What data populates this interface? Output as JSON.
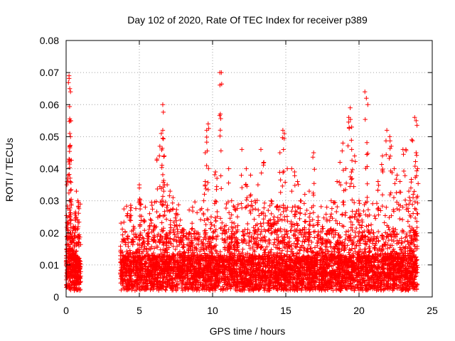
{
  "chart_data": {
    "type": "scatter",
    "title": "Day 102 of 2020, Rate Of TEC Index for receiver p389",
    "xlabel": "GPS time / hours",
    "ylabel": "ROTI / TECUs",
    "xlim": [
      0,
      25
    ],
    "ylim": [
      0,
      0.08
    ],
    "x_ticks": [
      "0",
      "5",
      "10",
      "15",
      "20",
      "25"
    ],
    "y_ticks": [
      "0",
      "0.01",
      "0.02",
      "0.03",
      "0.04",
      "0.05",
      "0.06",
      "0.07",
      "0.08"
    ],
    "x_tick_values": [
      0,
      5,
      10,
      15,
      20,
      25
    ],
    "y_tick_values": [
      0,
      0.01,
      0.02,
      0.03,
      0.04,
      0.05,
      0.06,
      0.07,
      0.08
    ],
    "grid": true,
    "marker": "+",
    "marker_color": "#ff0000",
    "series": [
      {
        "segments": [
          {
            "x_start": 0.0,
            "x_end": 1.0
          },
          {
            "x_start": 3.7,
            "x_end": 24.0
          }
        ],
        "points": [
          [
            0.2,
            0.069
          ],
          [
            0.25,
            0.065
          ],
          [
            0.3,
            0.064
          ],
          [
            0.3,
            0.055
          ],
          [
            0.25,
            0.051
          ],
          [
            0.3,
            0.05
          ],
          [
            0.2,
            0.043
          ],
          [
            0.1,
            0.037
          ],
          [
            0.15,
            0.036
          ],
          [
            0.05,
            0.035
          ],
          [
            0.1,
            0.023
          ],
          [
            0.3,
            0.03
          ],
          [
            0.35,
            0.029
          ],
          [
            0.6,
            0.026
          ],
          [
            0.7,
            0.033
          ],
          [
            0.8,
            0.03
          ],
          [
            0.85,
            0.028
          ],
          [
            0.5,
            0.022
          ],
          [
            0.6,
            0.02
          ],
          [
            0.4,
            0.018
          ],
          [
            0.2,
            0.015
          ],
          [
            0.5,
            0.012
          ],
          [
            0.7,
            0.011
          ],
          [
            0.85,
            0.009
          ],
          [
            0.9,
            0.006
          ],
          [
            0.15,
            0.008
          ],
          [
            0.3,
            0.005
          ],
          [
            0.6,
            0.004
          ],
          [
            0.05,
            0.003
          ],
          [
            0.75,
            0.007
          ],
          [
            4.2,
            0.026
          ],
          [
            4.4,
            0.027
          ],
          [
            4.6,
            0.022
          ],
          [
            4.8,
            0.019
          ],
          [
            5.0,
            0.035
          ],
          [
            5.0,
            0.034
          ],
          [
            5.1,
            0.029
          ],
          [
            5.3,
            0.024
          ],
          [
            5.6,
            0.02
          ],
          [
            6.0,
            0.022
          ],
          [
            6.2,
            0.043
          ],
          [
            6.4,
            0.047
          ],
          [
            6.5,
            0.051
          ],
          [
            6.6,
            0.052
          ],
          [
            6.6,
            0.06
          ],
          [
            6.7,
            0.044
          ],
          [
            6.9,
            0.035
          ],
          [
            7.1,
            0.033
          ],
          [
            7.3,
            0.031
          ],
          [
            7.5,
            0.026
          ],
          [
            7.8,
            0.024
          ],
          [
            8.0,
            0.021
          ],
          [
            8.4,
            0.02
          ],
          [
            8.6,
            0.023
          ],
          [
            9.0,
            0.02
          ],
          [
            9.4,
            0.03
          ],
          [
            9.5,
            0.045
          ],
          [
            9.6,
            0.052
          ],
          [
            9.7,
            0.054
          ],
          [
            9.5,
            0.036
          ],
          [
            9.9,
            0.025
          ],
          [
            10.2,
            0.039
          ],
          [
            10.3,
            0.037
          ],
          [
            10.5,
            0.07
          ],
          [
            10.6,
            0.07
          ],
          [
            10.8,
            0.022
          ],
          [
            11.1,
            0.04
          ],
          [
            11.3,
            0.03
          ],
          [
            11.5,
            0.028
          ],
          [
            11.7,
            0.025
          ],
          [
            12.0,
            0.046
          ],
          [
            12.3,
            0.04
          ],
          [
            12.6,
            0.038
          ],
          [
            12.9,
            0.03
          ],
          [
            13.1,
            0.035
          ],
          [
            13.3,
            0.046
          ],
          [
            13.5,
            0.042
          ],
          [
            13.8,
            0.027
          ],
          [
            14.0,
            0.03
          ],
          [
            14.2,
            0.025
          ],
          [
            14.4,
            0.028
          ],
          [
            14.6,
            0.045
          ],
          [
            14.8,
            0.052
          ],
          [
            14.9,
            0.051
          ],
          [
            15.1,
            0.04
          ],
          [
            15.4,
            0.04
          ],
          [
            15.6,
            0.039
          ],
          [
            15.8,
            0.036
          ],
          [
            16.0,
            0.03
          ],
          [
            16.3,
            0.032
          ],
          [
            16.6,
            0.033
          ],
          [
            16.9,
            0.045
          ],
          [
            17.2,
            0.025
          ],
          [
            17.5,
            0.022
          ],
          [
            17.8,
            0.028
          ],
          [
            18.1,
            0.03
          ],
          [
            18.5,
            0.036
          ],
          [
            18.7,
            0.042
          ],
          [
            18.9,
            0.048
          ],
          [
            19.1,
            0.04
          ],
          [
            19.3,
            0.056
          ],
          [
            19.4,
            0.059
          ],
          [
            19.5,
            0.053
          ],
          [
            19.5,
            0.046
          ],
          [
            19.7,
            0.044
          ],
          [
            20.0,
            0.03
          ],
          [
            20.2,
            0.024
          ],
          [
            20.4,
            0.064
          ],
          [
            20.5,
            0.062
          ],
          [
            20.6,
            0.06
          ],
          [
            20.7,
            0.02
          ],
          [
            21.0,
            0.02
          ],
          [
            21.3,
            0.036
          ],
          [
            21.6,
            0.044
          ],
          [
            21.9,
            0.052
          ],
          [
            22.1,
            0.05
          ],
          [
            22.2,
            0.047
          ],
          [
            22.4,
            0.04
          ],
          [
            22.6,
            0.038
          ],
          [
            22.8,
            0.036
          ],
          [
            23.0,
            0.046
          ],
          [
            23.2,
            0.046
          ],
          [
            23.4,
            0.033
          ],
          [
            23.6,
            0.049
          ],
          [
            23.8,
            0.056
          ],
          [
            23.9,
            0.055
          ],
          [
            23.9,
            0.045
          ],
          [
            24.0,
            0.04
          ],
          [
            23.7,
            0.032
          ],
          [
            23.5,
            0.03
          ]
        ]
      }
    ]
  }
}
